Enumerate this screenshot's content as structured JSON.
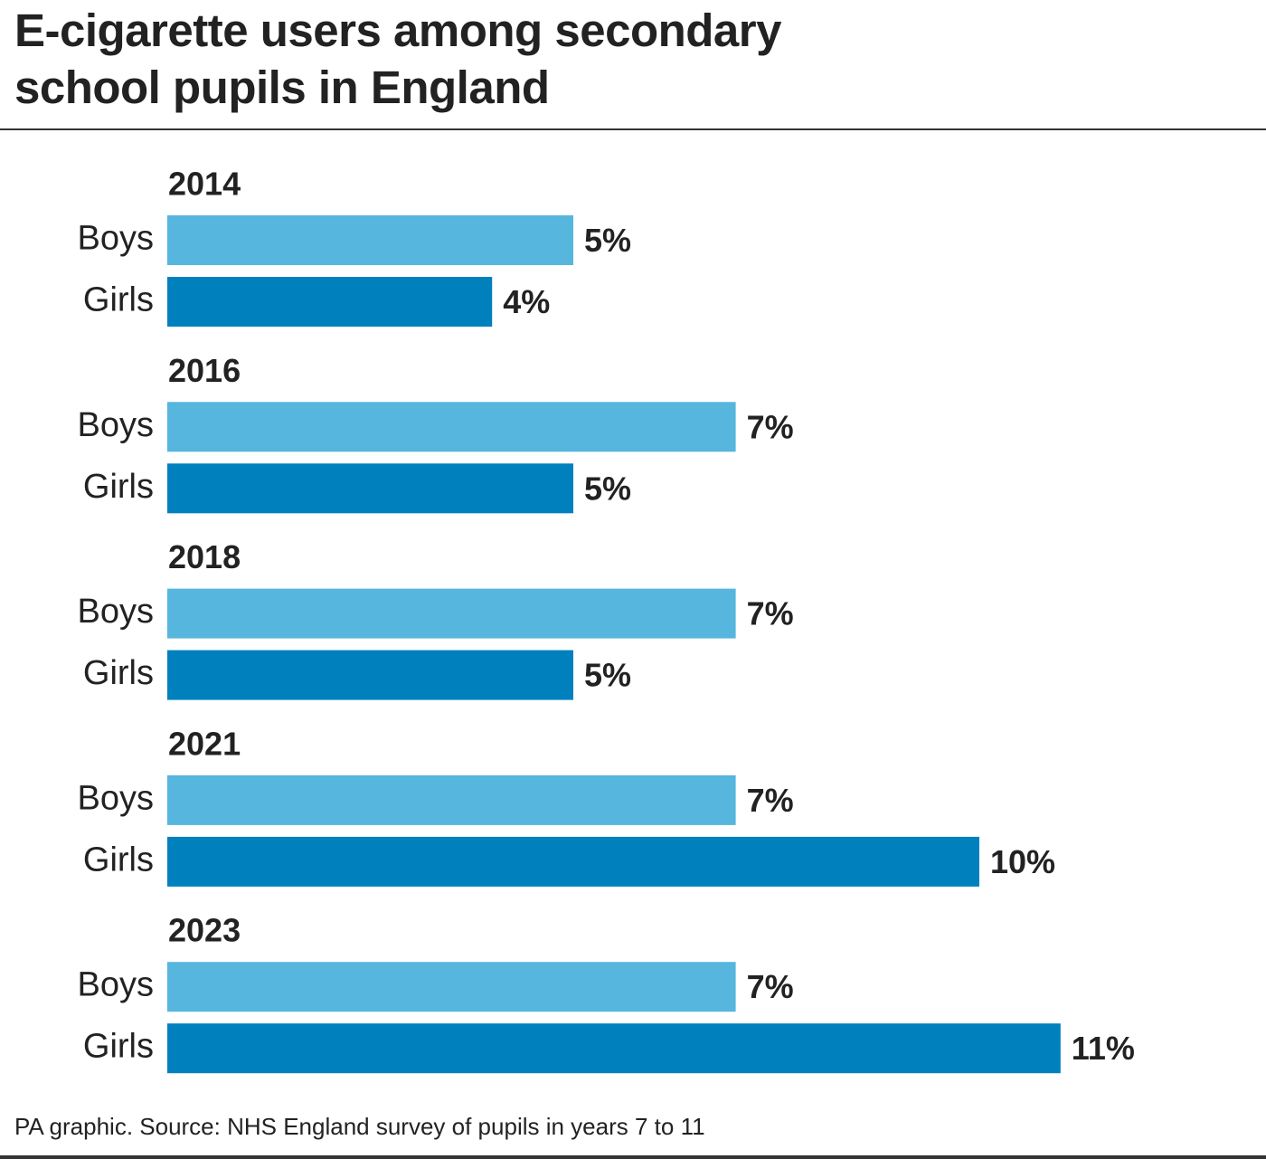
{
  "chart_data": {
    "type": "bar",
    "orientation": "horizontal",
    "title": "E-cigarette users among secondary school pupils in England",
    "source": "PA graphic. Source: NHS England survey of pupils in years 7 to 11",
    "categories": [
      "2014",
      "2016",
      "2018",
      "2021",
      "2023"
    ],
    "series": [
      {
        "name": "Boys",
        "color": "#56b6de",
        "values": [
          5,
          7,
          7,
          7,
          7
        ],
        "value_labels": [
          "5%",
          "7%",
          "7%",
          "7%",
          "7%"
        ]
      },
      {
        "name": "Girls",
        "color": "#0080bd",
        "values": [
          4,
          5,
          5,
          10,
          11
        ],
        "value_labels": [
          "4%",
          "5%",
          "5%",
          "10%",
          "11%"
        ]
      }
    ]
  }
}
